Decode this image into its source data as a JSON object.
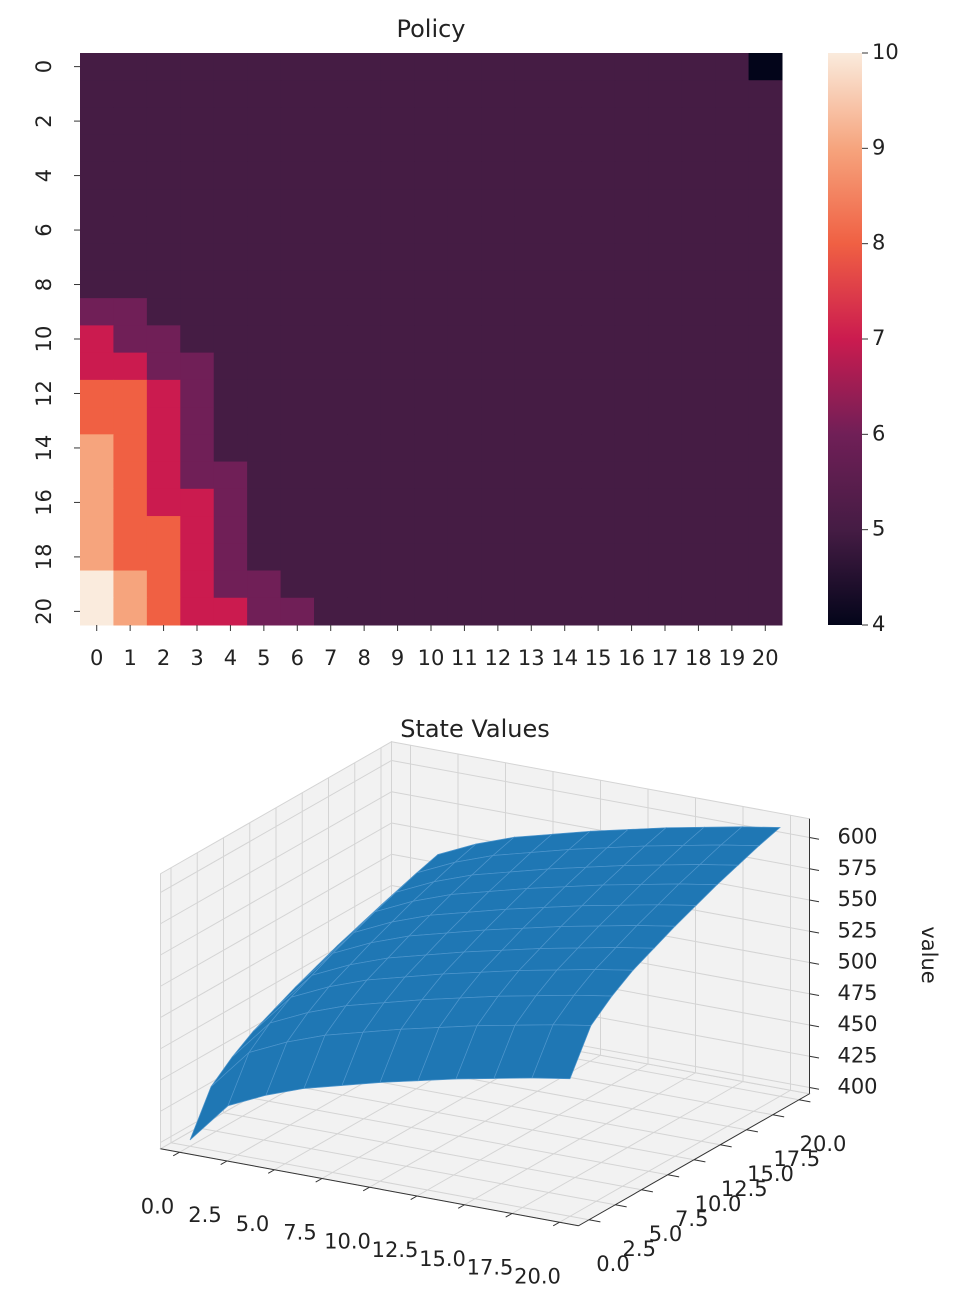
{
  "chart_data": [
    {
      "type": "heatmap",
      "title": "Policy",
      "x": [
        0,
        1,
        2,
        3,
        4,
        5,
        6,
        7,
        8,
        9,
        10,
        11,
        12,
        13,
        14,
        15,
        16,
        17,
        18,
        19,
        20
      ],
      "yticks": [
        0,
        2,
        4,
        6,
        8,
        10,
        12,
        14,
        16,
        18,
        20
      ],
      "z": [
        [
          5,
          5,
          5,
          5,
          5,
          5,
          5,
          5,
          5,
          5,
          5,
          5,
          5,
          5,
          5,
          5,
          5,
          5,
          5,
          5,
          4
        ],
        [
          5,
          5,
          5,
          5,
          5,
          5,
          5,
          5,
          5,
          5,
          5,
          5,
          5,
          5,
          5,
          5,
          5,
          5,
          5,
          5,
          5
        ],
        [
          5,
          5,
          5,
          5,
          5,
          5,
          5,
          5,
          5,
          5,
          5,
          5,
          5,
          5,
          5,
          5,
          5,
          5,
          5,
          5,
          5
        ],
        [
          5,
          5,
          5,
          5,
          5,
          5,
          5,
          5,
          5,
          5,
          5,
          5,
          5,
          5,
          5,
          5,
          5,
          5,
          5,
          5,
          5
        ],
        [
          5,
          5,
          5,
          5,
          5,
          5,
          5,
          5,
          5,
          5,
          5,
          5,
          5,
          5,
          5,
          5,
          5,
          5,
          5,
          5,
          5
        ],
        [
          5,
          5,
          5,
          5,
          5,
          5,
          5,
          5,
          5,
          5,
          5,
          5,
          5,
          5,
          5,
          5,
          5,
          5,
          5,
          5,
          5
        ],
        [
          5,
          5,
          5,
          5,
          5,
          5,
          5,
          5,
          5,
          5,
          5,
          5,
          5,
          5,
          5,
          5,
          5,
          5,
          5,
          5,
          5
        ],
        [
          5,
          5,
          5,
          5,
          5,
          5,
          5,
          5,
          5,
          5,
          5,
          5,
          5,
          5,
          5,
          5,
          5,
          5,
          5,
          5,
          5
        ],
        [
          5,
          5,
          5,
          5,
          5,
          5,
          5,
          5,
          5,
          5,
          5,
          5,
          5,
          5,
          5,
          5,
          5,
          5,
          5,
          5,
          5
        ],
        [
          6,
          6,
          5,
          5,
          5,
          5,
          5,
          5,
          5,
          5,
          5,
          5,
          5,
          5,
          5,
          5,
          5,
          5,
          5,
          5,
          5
        ],
        [
          7,
          6,
          6,
          5,
          5,
          5,
          5,
          5,
          5,
          5,
          5,
          5,
          5,
          5,
          5,
          5,
          5,
          5,
          5,
          5,
          5
        ],
        [
          7,
          7,
          6,
          6,
          5,
          5,
          5,
          5,
          5,
          5,
          5,
          5,
          5,
          5,
          5,
          5,
          5,
          5,
          5,
          5,
          5
        ],
        [
          8,
          8,
          7,
          6,
          5,
          5,
          5,
          5,
          5,
          5,
          5,
          5,
          5,
          5,
          5,
          5,
          5,
          5,
          5,
          5,
          5
        ],
        [
          8,
          8,
          7,
          6,
          5,
          5,
          5,
          5,
          5,
          5,
          5,
          5,
          5,
          5,
          5,
          5,
          5,
          5,
          5,
          5,
          5
        ],
        [
          9,
          8,
          7,
          6,
          5,
          5,
          5,
          5,
          5,
          5,
          5,
          5,
          5,
          5,
          5,
          5,
          5,
          5,
          5,
          5,
          5
        ],
        [
          9,
          8,
          7,
          6,
          6,
          5,
          5,
          5,
          5,
          5,
          5,
          5,
          5,
          5,
          5,
          5,
          5,
          5,
          5,
          5,
          5
        ],
        [
          9,
          8,
          7,
          7,
          6,
          5,
          5,
          5,
          5,
          5,
          5,
          5,
          5,
          5,
          5,
          5,
          5,
          5,
          5,
          5,
          5
        ],
        [
          9,
          8,
          8,
          7,
          6,
          5,
          5,
          5,
          5,
          5,
          5,
          5,
          5,
          5,
          5,
          5,
          5,
          5,
          5,
          5,
          5
        ],
        [
          9,
          8,
          8,
          7,
          6,
          5,
          5,
          5,
          5,
          5,
          5,
          5,
          5,
          5,
          5,
          5,
          5,
          5,
          5,
          5,
          5
        ],
        [
          10,
          9,
          8,
          7,
          6,
          6,
          5,
          5,
          5,
          5,
          5,
          5,
          5,
          5,
          5,
          5,
          5,
          5,
          5,
          5,
          5
        ],
        [
          10,
          9,
          8,
          7,
          7,
          6,
          6,
          5,
          5,
          5,
          5,
          5,
          5,
          5,
          5,
          5,
          5,
          5,
          5,
          5,
          5
        ]
      ],
      "clim": [
        4,
        10
      ],
      "cticks": [
        4,
        5,
        6,
        7,
        8,
        9,
        10
      ],
      "colormap": [
        "#03051a",
        "#451c44",
        "#701f57",
        "#cb1b4f",
        "#f06043",
        "#f6a47d",
        "#faebdd"
      ]
    },
    {
      "type": "surface",
      "title": "State Values",
      "zlabel": "value",
      "color": "#1f77b4",
      "x": [
        0,
        2,
        4,
        6,
        8,
        10,
        12,
        14,
        16,
        18,
        20
      ],
      "y": [
        0,
        2,
        4,
        6,
        8,
        10,
        12,
        14,
        16,
        18,
        20
      ],
      "z": [
        [
          400,
          433,
          447,
          458,
          466,
          474,
          481,
          488,
          494,
          500,
          505
        ],
        [
          433,
          466,
          480,
          491,
          499,
          507,
          514,
          521,
          527,
          533,
          538
        ],
        [
          447,
          480,
          494,
          505,
          513,
          521,
          528,
          535,
          541,
          547,
          552
        ],
        [
          458,
          491,
          505,
          516,
          524,
          532,
          539,
          546,
          552,
          558,
          563
        ],
        [
          466,
          499,
          513,
          524,
          532,
          540,
          547,
          554,
          560,
          566,
          571
        ],
        [
          474,
          507,
          521,
          532,
          540,
          548,
          555,
          562,
          568,
          574,
          579
        ],
        [
          481,
          514,
          528,
          539,
          547,
          555,
          562,
          569,
          575,
          581,
          586
        ],
        [
          488,
          521,
          535,
          546,
          554,
          562,
          569,
          576,
          582,
          588,
          593
        ],
        [
          494,
          527,
          541,
          552,
          560,
          568,
          575,
          582,
          588,
          594,
          599
        ],
        [
          500,
          533,
          547,
          558,
          566,
          574,
          581,
          588,
          594,
          600,
          605
        ],
        [
          505,
          538,
          552,
          563,
          571,
          579,
          586,
          593,
          599,
          605,
          610
        ]
      ],
      "xlim": [
        -1,
        21
      ],
      "ylim": [
        -1,
        21
      ],
      "zlim": [
        395,
        615
      ],
      "xticks": [
        {
          "value": 0,
          "label": "0.0"
        },
        {
          "value": 2.5,
          "label": "2.5"
        },
        {
          "value": 5,
          "label": "5.0"
        },
        {
          "value": 7.5,
          "label": "7.5"
        },
        {
          "value": 10,
          "label": "10.0"
        },
        {
          "value": 12.5,
          "label": "12.5"
        },
        {
          "value": 15,
          "label": "15.0"
        },
        {
          "value": 17.5,
          "label": "17.5"
        },
        {
          "value": 20,
          "label": "20.0"
        }
      ],
      "yticks": [
        {
          "value": 0,
          "label": "0.0"
        },
        {
          "value": 2.5,
          "label": "2.5"
        },
        {
          "value": 5,
          "label": "5.0"
        },
        {
          "value": 7.5,
          "label": "7.5"
        },
        {
          "value": 10,
          "label": "10.0"
        },
        {
          "value": 12.5,
          "label": "12.5"
        },
        {
          "value": 15,
          "label": "15.0"
        },
        {
          "value": 17.5,
          "label": "17.5"
        },
        {
          "value": 20,
          "label": "20.0"
        }
      ],
      "zticks": [
        400,
        425,
        450,
        475,
        500,
        525,
        550,
        575,
        600
      ]
    }
  ]
}
